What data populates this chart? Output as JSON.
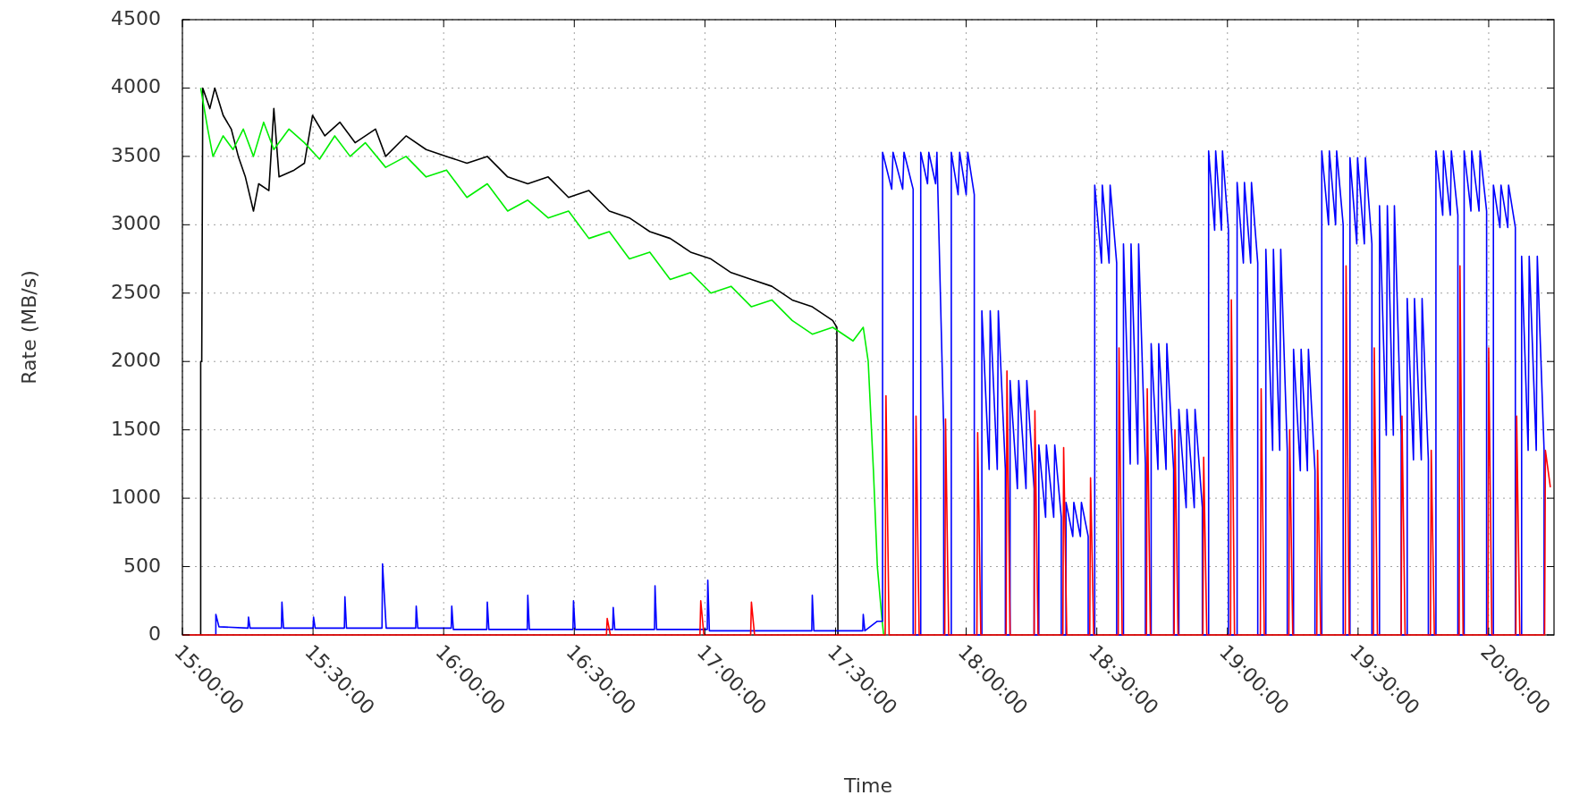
{
  "chart_data": {
    "type": "line",
    "xlabel": "Time",
    "ylabel": "Rate (MB/s)",
    "xlim": [
      15,
      20.25
    ],
    "ylim": [
      0,
      4500
    ],
    "xticks": [
      {
        "value": 15,
        "label": "15:00:00"
      },
      {
        "value": 15.5,
        "label": "15:30:00"
      },
      {
        "value": 16,
        "label": "16:00:00"
      },
      {
        "value": 16.5,
        "label": "16:30:00"
      },
      {
        "value": 17,
        "label": "17:00:00"
      },
      {
        "value": 17.5,
        "label": "17:30:00"
      },
      {
        "value": 18,
        "label": "18:00:00"
      },
      {
        "value": 18.5,
        "label": "18:30:00"
      },
      {
        "value": 19,
        "label": "19:00:00"
      },
      {
        "value": 19.5,
        "label": "19:30:00"
      },
      {
        "value": 20,
        "label": "20:00:00"
      }
    ],
    "yticks": [
      0,
      500,
      1000,
      1500,
      2000,
      2500,
      3000,
      3500,
      4000,
      4500
    ],
    "grid": true,
    "marker": "none",
    "line_style": "solid",
    "series": [
      {
        "color": "#000000",
        "x": [
          15.07,
          15.07,
          15.074,
          15.078,
          15.105,
          15.124,
          15.156,
          15.187,
          15.214,
          15.241,
          15.272,
          15.292,
          15.331,
          15.35,
          15.37,
          15.428,
          15.467,
          15.498,
          15.545,
          15.603,
          15.661,
          15.739,
          15.778,
          15.856,
          15.933,
          16.011,
          16.089,
          16.167,
          16.245,
          16.322,
          16.4,
          16.478,
          16.556,
          16.634,
          16.711,
          16.789,
          16.867,
          16.945,
          17.023,
          17.1,
          17.178,
          17.256,
          17.334,
          17.411,
          17.489,
          17.505,
          17.509
        ],
        "values": [
          0,
          2000,
          2000,
          4000,
          3850,
          4000,
          3800,
          3700,
          3500,
          3350,
          3100,
          3300,
          3250,
          3850,
          3350,
          3400,
          3450,
          3800,
          3650,
          3750,
          3600,
          3700,
          3500,
          3650,
          3550,
          3500,
          3450,
          3500,
          3350,
          3300,
          3350,
          3200,
          3250,
          3100,
          3050,
          2950,
          2900,
          2800,
          2750,
          2650,
          2600,
          2550,
          2450,
          2400,
          2300,
          2250,
          0
        ]
      },
      {
        "color": "#00ee00",
        "x": [
          15.07,
          15.097,
          15.117,
          15.156,
          15.194,
          15.233,
          15.272,
          15.311,
          15.35,
          15.408,
          15.467,
          15.525,
          15.583,
          15.642,
          15.7,
          15.778,
          15.856,
          15.933,
          16.011,
          16.089,
          16.167,
          16.245,
          16.322,
          16.4,
          16.478,
          16.556,
          16.634,
          16.711,
          16.789,
          16.867,
          16.945,
          17.023,
          17.1,
          17.178,
          17.256,
          17.334,
          17.411,
          17.489,
          17.567,
          17.606,
          17.625,
          17.645,
          17.66,
          17.676,
          17.684
        ],
        "values": [
          4000,
          3700,
          3500,
          3650,
          3550,
          3700,
          3500,
          3750,
          3550,
          3700,
          3600,
          3480,
          3650,
          3500,
          3600,
          3420,
          3500,
          3350,
          3400,
          3200,
          3300,
          3100,
          3180,
          3050,
          3100,
          2900,
          2950,
          2750,
          2800,
          2600,
          2650,
          2500,
          2550,
          2400,
          2450,
          2300,
          2200,
          2250,
          2150,
          2250,
          2000,
          1200,
          500,
          150,
          0
        ]
      },
      {
        "color": "#0000ff",
        "x": [
          15.128,
          15.128,
          15.14,
          15.251,
          15.253,
          15.259,
          15.379,
          15.381,
          15.387,
          15.5,
          15.502,
          15.508,
          15.62,
          15.622,
          15.628,
          15.764,
          15.766,
          15.78,
          15.893,
          15.895,
          15.901,
          16.029,
          16.031,
          16.037,
          16.165,
          16.167,
          16.173,
          16.32,
          16.322,
          16.328,
          16.495,
          16.497,
          16.503,
          16.647,
          16.649,
          16.655,
          16.807,
          16.809,
          16.815,
          17.009,
          17.011,
          17.017,
          17.409,
          17.411,
          17.417,
          17.604,
          17.606,
          17.612,
          17.66,
          17.665,
          17.68,
          17.68,
          17.715,
          17.72,
          17.757,
          17.762,
          17.797,
          17.797,
          17.826,
          17.826,
          17.852,
          17.857,
          17.883,
          17.888,
          17.914,
          17.914,
          17.943,
          17.943,
          17.969,
          17.975,
          18.0,
          18.006,
          18.031,
          18.031,
          18.06,
          18.06,
          18.088,
          18.092,
          18.119,
          18.123,
          18.15,
          18.15,
          18.168,
          18.168,
          18.196,
          18.201,
          18.229,
          18.232,
          18.26,
          18.26,
          18.278,
          18.278,
          18.304,
          18.307,
          18.335,
          18.339,
          18.364,
          18.364,
          18.382,
          18.382,
          18.408,
          18.412,
          18.437,
          18.441,
          18.467,
          18.467,
          18.492,
          18.492,
          18.518,
          18.521,
          18.547,
          18.551,
          18.576,
          18.576,
          18.602,
          18.602,
          18.628,
          18.631,
          18.657,
          18.66,
          18.686,
          18.686,
          18.708,
          18.708,
          18.734,
          18.737,
          18.765,
          18.768,
          18.794,
          18.794,
          18.814,
          18.814,
          18.842,
          18.845,
          18.873,
          18.876,
          18.904,
          18.904,
          18.928,
          18.928,
          18.951,
          18.955,
          18.977,
          18.981,
          19.004,
          19.004,
          19.037,
          19.037,
          19.061,
          19.065,
          19.089,
          19.092,
          19.116,
          19.116,
          19.147,
          19.147,
          19.173,
          19.176,
          19.2,
          19.204,
          19.229,
          19.229,
          19.253,
          19.253,
          19.279,
          19.282,
          19.306,
          19.31,
          19.335,
          19.335,
          19.361,
          19.361,
          19.387,
          19.39,
          19.414,
          19.418,
          19.443,
          19.443,
          19.469,
          19.469,
          19.495,
          19.498,
          19.524,
          19.528,
          19.553,
          19.553,
          19.582,
          19.582,
          19.608,
          19.612,
          19.635,
          19.639,
          19.665,
          19.665,
          19.688,
          19.688,
          19.712,
          19.716,
          19.742,
          19.745,
          19.769,
          19.769,
          19.798,
          19.798,
          19.824,
          19.827,
          19.853,
          19.857,
          19.882,
          19.882,
          19.906,
          19.906,
          19.932,
          19.935,
          19.963,
          19.967,
          19.992,
          19.992,
          20.018,
          20.018,
          20.043,
          20.047,
          20.073,
          20.076,
          20.102,
          20.102,
          20.126,
          20.126,
          20.151,
          20.155,
          20.182,
          20.186,
          20.212,
          20.212
        ],
        "values": [
          0,
          150,
          60,
          50,
          130,
          50,
          50,
          240,
          50,
          50,
          130,
          50,
          50,
          280,
          50,
          50,
          520,
          50,
          50,
          210,
          50,
          50,
          210,
          40,
          40,
          240,
          40,
          40,
          290,
          40,
          40,
          250,
          40,
          40,
          200,
          40,
          40,
          360,
          40,
          40,
          400,
          30,
          30,
          290,
          30,
          30,
          150,
          30,
          100,
          100,
          100,
          3530,
          3260,
          3530,
          3260,
          3530,
          3260,
          0,
          0,
          3530,
          3300,
          3530,
          3300,
          3530,
          1500,
          0,
          0,
          3530,
          3220,
          3530,
          3220,
          3530,
          3220,
          0,
          0,
          2370,
          1210,
          2370,
          1210,
          2370,
          1210,
          0,
          0,
          1860,
          1070,
          1860,
          1070,
          1860,
          1070,
          0,
          0,
          1390,
          860,
          1390,
          860,
          1390,
          860,
          0,
          0,
          970,
          720,
          970,
          720,
          970,
          720,
          0,
          0,
          3290,
          2720,
          3290,
          2720,
          3290,
          2720,
          0,
          0,
          2860,
          1250,
          2860,
          1250,
          2860,
          1250,
          0,
          0,
          2130,
          1210,
          2130,
          1210,
          2130,
          1210,
          0,
          0,
          1650,
          930,
          1650,
          930,
          1650,
          930,
          0,
          0,
          3540,
          2960,
          3540,
          2960,
          3540,
          2960,
          0,
          0,
          3310,
          2720,
          3310,
          2720,
          3310,
          2720,
          0,
          0,
          2820,
          1350,
          2820,
          1350,
          2820,
          1350,
          0,
          0,
          2090,
          1200,
          2090,
          1200,
          2090,
          1200,
          0,
          0,
          3540,
          3000,
          3540,
          3000,
          3540,
          3000,
          0,
          0,
          3490,
          2860,
          3490,
          2860,
          3490,
          2860,
          0,
          0,
          3140,
          1460,
          3140,
          1460,
          3140,
          1460,
          0,
          0,
          2460,
          1280,
          2460,
          1280,
          2460,
          1280,
          0,
          0,
          3540,
          3070,
          3540,
          3070,
          3540,
          3070,
          0,
          0,
          3540,
          3100,
          3540,
          3100,
          3540,
          3100,
          0,
          0,
          3290,
          2980,
          3290,
          2980,
          3290,
          2980,
          0,
          0,
          2770,
          1350,
          2770,
          1350,
          2770,
          1350,
          0
        ]
      },
      {
        "color": "#ff0000",
        "x": [
          15,
          16.623,
          16.626,
          16.638,
          16.981,
          16.984,
          16.996,
          17.175,
          17.178,
          17.19,
          17.69,
          17.693,
          17.705,
          17.805,
          17.808,
          17.82,
          17.918,
          17.921,
          17.933,
          18.041,
          18.044,
          18.056,
          18.153,
          18.156,
          18.168,
          18.26,
          18.263,
          18.275,
          18.37,
          18.373,
          18.385,
          18.473,
          18.476,
          18.488,
          18.582,
          18.585,
          18.597,
          18.69,
          18.693,
          18.705,
          18.796,
          18.799,
          18.811,
          18.906,
          18.909,
          18.921,
          19.012,
          19.015,
          19.027,
          19.126,
          19.129,
          19.141,
          19.235,
          19.238,
          19.25,
          19.342,
          19.345,
          19.357,
          19.451,
          19.454,
          19.466,
          19.559,
          19.562,
          19.574,
          19.665,
          19.668,
          19.68,
          19.777,
          19.78,
          19.792,
          19.887,
          19.89,
          19.902,
          19.997,
          20.0,
          20.012,
          20.104,
          20.107,
          20.119,
          20.214,
          20.217,
          20.236
        ],
        "values": [
          0,
          0,
          120,
          0,
          0,
          250,
          0,
          0,
          240,
          0,
          0,
          1750,
          0,
          0,
          1600,
          0,
          0,
          1580,
          0,
          0,
          1480,
          0,
          0,
          1930,
          0,
          0,
          1640,
          0,
          0,
          1370,
          0,
          0,
          1150,
          0,
          0,
          2100,
          0,
          0,
          1800,
          0,
          0,
          1500,
          0,
          0,
          1300,
          0,
          0,
          2450,
          0,
          0,
          1800,
          0,
          0,
          1500,
          0,
          0,
          1350,
          0,
          0,
          2700,
          0,
          0,
          2100,
          0,
          0,
          1600,
          0,
          0,
          1350,
          0,
          0,
          2700,
          0,
          0,
          2100,
          0,
          0,
          1600,
          0,
          0,
          1350,
          1080
        ]
      }
    ]
  }
}
